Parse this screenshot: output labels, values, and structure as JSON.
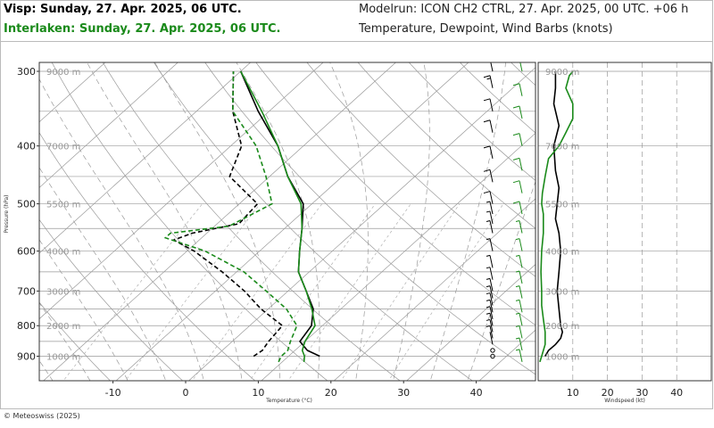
{
  "header": {
    "title_primary": "Visp: Sunday, 27. Apr. 2025, 06 UTC.",
    "title_secondary": "Interlaken: Sunday, 27. Apr. 2025, 06 UTC.",
    "modelrun": "Modelrun: ICON CH2 CTRL, 27. Apr. 2025, 00 UTC. +06 h",
    "subtitle": "Temperature, Dewpoint, Wind Barbs (knots)"
  },
  "footer": {
    "copyright": "© Meteoswiss (2025)"
  },
  "colors": {
    "primary": "#000000",
    "secondary": "#1a8a1a",
    "grid": "#9a9a9a"
  },
  "chart_data": [
    {
      "type": "line",
      "chart_kind": "skew-T log-p diagram",
      "xlabel": "Temperature (°C)",
      "ylabel": "Pressure (hPa)",
      "x_ticks": [
        -10,
        0,
        10,
        20,
        30,
        40
      ],
      "y_ticks": [
        300,
        400,
        500,
        600,
        700,
        800,
        900
      ],
      "altitude_labels": [
        {
          "p": 300,
          "label": "9000 m"
        },
        {
          "p": 400,
          "label": "7000 m"
        },
        {
          "p": 500,
          "label": "5500 m"
        },
        {
          "p": 600,
          "label": "4000 m"
        },
        {
          "p": 700,
          "label": "3000 m"
        },
        {
          "p": 800,
          "label": "2000 m"
        },
        {
          "p": 900,
          "label": "1000 m"
        }
      ],
      "series": [
        {
          "name": "Visp: Sunday, 27. Apr. 2025, 06 UTC.",
          "variable": "temperature",
          "color": "#000000",
          "dash": "solid",
          "points": [
            [
              900,
              14.3
            ],
            [
              880,
              11.7
            ],
            [
              850,
              9.3
            ],
            [
              800,
              8.5
            ],
            [
              750,
              6.2
            ],
            [
              700,
              2.5
            ],
            [
              650,
              -1.5
            ],
            [
              600,
              -4.5
            ],
            [
              550,
              -7.6
            ],
            [
              500,
              -11.2
            ],
            [
              450,
              -17.5
            ],
            [
              400,
              -23.5
            ],
            [
              350,
              -31.5
            ],
            [
              300,
              -40.0
            ]
          ]
        },
        {
          "name": "Visp: Sunday, 27. Apr. 2025, 06 UTC.",
          "variable": "dewpoint",
          "color": "#000000",
          "dash": "dashed",
          "points": [
            [
              900,
              5.2
            ],
            [
              880,
              5.5
            ],
            [
              850,
              5.0
            ],
            [
              800,
              4.5
            ],
            [
              750,
              -1.0
            ],
            [
              700,
              -6.0
            ],
            [
              650,
              -12.0
            ],
            [
              600,
              -19.0
            ],
            [
              575,
              -23.5
            ],
            [
              560,
              -22.0
            ],
            [
              540,
              -17.0
            ],
            [
              500,
              -17.5
            ],
            [
              450,
              -25.5
            ],
            [
              400,
              -28.5
            ],
            [
              350,
              -35.0
            ],
            [
              300,
              -41.0
            ]
          ]
        },
        {
          "name": "Interlaken: Sunday, 27. Apr. 2025, 06 UTC.",
          "variable": "temperature",
          "color": "#1a8a1a",
          "dash": "solid",
          "points": [
            [
              920,
              13.0
            ],
            [
              900,
              12.2
            ],
            [
              880,
              11.0
            ],
            [
              850,
              10.0
            ],
            [
              800,
              9.0
            ],
            [
              750,
              6.0
            ],
            [
              700,
              2.5
            ],
            [
              650,
              -1.5
            ],
            [
              600,
              -4.5
            ],
            [
              550,
              -7.6
            ],
            [
              500,
              -11.5
            ],
            [
              450,
              -17.5
            ],
            [
              400,
              -23.5
            ],
            [
              350,
              -31.0
            ],
            [
              300,
              -40.0
            ]
          ]
        },
        {
          "name": "Interlaken: Sunday, 27. Apr. 2025, 06 UTC.",
          "variable": "dewpoint",
          "color": "#1a8a1a",
          "dash": "dashed",
          "points": [
            [
              920,
              9.5
            ],
            [
              900,
              9.0
            ],
            [
              880,
              9.0
            ],
            [
              850,
              8.0
            ],
            [
              800,
              6.5
            ],
            [
              750,
              2.5
            ],
            [
              700,
              -3.0
            ],
            [
              650,
              -9.0
            ],
            [
              600,
              -17.5
            ],
            [
              570,
              -25.0
            ],
            [
              560,
              -25.0
            ],
            [
              545,
              -18.0
            ],
            [
              500,
              -15.5
            ],
            [
              450,
              -20.5
            ],
            [
              400,
              -26.5
            ],
            [
              350,
              -35.0
            ],
            [
              300,
              -41.0
            ]
          ]
        }
      ],
      "wind_barbs": [
        {
          "name": "Visp: Sunday, 27. Apr. 2025, 06 UTC.",
          "color": "#000000",
          "levels": [
            [
              900,
              2
            ],
            [
              880,
              3
            ],
            [
              860,
              4
            ],
            [
              840,
              5
            ],
            [
              820,
              5
            ],
            [
              800,
              5
            ],
            [
              780,
              5
            ],
            [
              760,
              5
            ],
            [
              740,
              5
            ],
            [
              720,
              5
            ],
            [
              700,
              5
            ],
            [
              670,
              6
            ],
            [
              640,
              7
            ],
            [
              600,
              8
            ],
            [
              560,
              8
            ],
            [
              540,
              9
            ],
            [
              520,
              9
            ],
            [
              500,
              10
            ],
            [
              460,
              10
            ],
            [
              420,
              12
            ],
            [
              380,
              12
            ],
            [
              350,
              14
            ],
            [
              320,
              15
            ],
            [
              300,
              15
            ]
          ]
        },
        {
          "name": "Interlaken: Sunday, 27. Apr. 2025, 06 UTC.",
          "color": "#1a8a1a",
          "levels": [
            [
              920,
              5
            ],
            [
              880,
              6
            ],
            [
              840,
              6
            ],
            [
              800,
              7
            ],
            [
              760,
              7
            ],
            [
              720,
              7
            ],
            [
              680,
              8
            ],
            [
              640,
              8
            ],
            [
              600,
              9
            ],
            [
              560,
              9
            ],
            [
              520,
              10
            ],
            [
              480,
              10
            ],
            [
              440,
              11
            ],
            [
              400,
              12
            ],
            [
              360,
              13
            ],
            [
              330,
              14
            ],
            [
              300,
              15
            ]
          ]
        }
      ]
    },
    {
      "type": "line",
      "xlabel": "Windspeed (kt)",
      "x_ticks": [
        10,
        20,
        30,
        40
      ],
      "xlim": [
        0,
        50
      ],
      "series": [
        {
          "name": "Visp: Sunday, 27. Apr. 2025, 06 UTC.",
          "color": "#000000",
          "points": [
            [
              900,
              2
            ],
            [
              880,
              3
            ],
            [
              860,
              5
            ],
            [
              840,
              6.5
            ],
            [
              820,
              7
            ],
            [
              800,
              6.5
            ],
            [
              750,
              6
            ],
            [
              700,
              5.5
            ],
            [
              650,
              6
            ],
            [
              600,
              6.5
            ],
            [
              560,
              6
            ],
            [
              530,
              5
            ],
            [
              500,
              5.5
            ],
            [
              470,
              6
            ],
            [
              440,
              5
            ],
            [
              400,
              4.5
            ],
            [
              370,
              6
            ],
            [
              340,
              4.5
            ],
            [
              320,
              5
            ],
            [
              300,
              5
            ]
          ]
        },
        {
          "name": "Interlaken: Sunday, 27. Apr. 2025, 06 UTC.",
          "color": "#1a8a1a",
          "points": [
            [
              920,
              0.5
            ],
            [
              900,
              1
            ],
            [
              860,
              2
            ],
            [
              820,
              2
            ],
            [
              780,
              1.5
            ],
            [
              740,
              1
            ],
            [
              700,
              1
            ],
            [
              650,
              0.8
            ],
            [
              600,
              1
            ],
            [
              560,
              1.5
            ],
            [
              520,
              1.5
            ],
            [
              500,
              1
            ],
            [
              480,
              1.2
            ],
            [
              450,
              2
            ],
            [
              420,
              3
            ],
            [
              400,
              6
            ],
            [
              380,
              8
            ],
            [
              360,
              10
            ],
            [
              340,
              10
            ],
            [
              320,
              8
            ],
            [
              305,
              9
            ],
            [
              300,
              10
            ]
          ]
        }
      ]
    }
  ]
}
